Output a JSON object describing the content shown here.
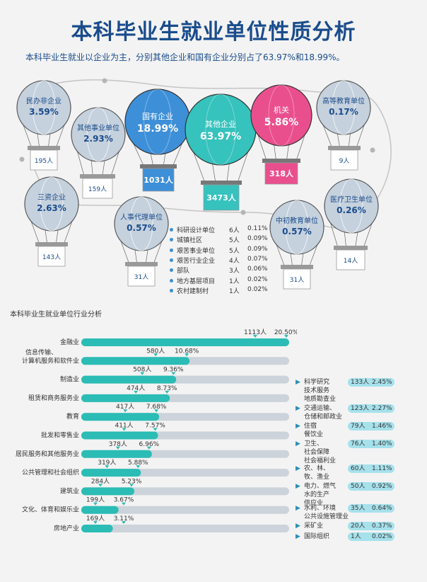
{
  "title": "本科毕业生就业单位性质分析",
  "subtitle": "本科毕业生就业以企业为主，分别其他企业和国有企业分别占了63.97%和18.99%。",
  "chart_data": [
    {
      "type": "bubble",
      "title": "就业单位性质",
      "balloons": [
        {
          "name": "民办非企业",
          "pct": "3.59%",
          "count": "195人",
          "color": "#c5d1dd"
        },
        {
          "name": "其他事业单位",
          "pct": "2.93%",
          "count": "159人",
          "color": "#c5d1dd"
        },
        {
          "name": "国有企业",
          "pct": "18.99%",
          "count": "1031人",
          "color": "#3d8fd8"
        },
        {
          "name": "其他企业",
          "pct": "63.97%",
          "count": "3473人",
          "color": "#36c2bd"
        },
        {
          "name": "机关",
          "pct": "5.86%",
          "count": "318人",
          "color": "#ea4f8d"
        },
        {
          "name": "高等教育单位",
          "pct": "0.17%",
          "count": "9人",
          "color": "#c5d1dd"
        },
        {
          "name": "三资企业",
          "pct": "2.63%",
          "count": "143人",
          "color": "#c5d1dd"
        },
        {
          "name": "人事代理单位",
          "pct": "0.57%",
          "count": "31人",
          "color": "#c5d1dd"
        },
        {
          "name": "中初教育单位",
          "pct": "0.57%",
          "count": "31人",
          "color": "#c5d1dd"
        },
        {
          "name": "医疗卫生单位",
          "pct": "0.26%",
          "count": "14人",
          "color": "#c5d1dd"
        }
      ],
      "others": [
        {
          "name": "科研设计单位",
          "count": "6人",
          "pct": "0.11%"
        },
        {
          "name": "城镇社区",
          "count": "5人",
          "pct": "0.09%"
        },
        {
          "name": "艰苦事业单位",
          "count": "5人",
          "pct": "0.09%"
        },
        {
          "name": "艰苦行业企业",
          "count": "4人",
          "pct": "0.07%"
        },
        {
          "name": "部队",
          "count": "3人",
          "pct": "0.06%"
        },
        {
          "name": "地方基层项目",
          "count": "1人",
          "pct": "0.02%"
        },
        {
          "name": "农村建制村",
          "count": "1人",
          "pct": "0.02%"
        }
      ]
    },
    {
      "type": "bar",
      "title": "本科毕业生就业单位行业分析",
      "max_pct": 20.5,
      "bars": [
        {
          "label": [
            "金融业"
          ],
          "count": "1113人",
          "pct_label": "20.50%",
          "pct": 20.5
        },
        {
          "label": [
            "信息传输、",
            "计算机服务和软件业"
          ],
          "count": "580人",
          "pct_label": "10.68%",
          "pct": 10.68
        },
        {
          "label": [
            "制造业"
          ],
          "count": "508人",
          "pct_label": "9.36%",
          "pct": 9.36
        },
        {
          "label": [
            "租赁和商务服务业"
          ],
          "count": "474人",
          "pct_label": "8.73%",
          "pct": 8.73
        },
        {
          "label": [
            "教育"
          ],
          "count": "417人",
          "pct_label": "7.68%",
          "pct": 7.68
        },
        {
          "label": [
            "批发和零售业"
          ],
          "count": "411人",
          "pct_label": "7.57%",
          "pct": 7.57
        },
        {
          "label": [
            "居民服务和其他服务业"
          ],
          "count": "378人",
          "pct_label": "6.96%",
          "pct": 6.96
        },
        {
          "label": [
            "公共管理和社会组织"
          ],
          "count": "319人",
          "pct_label": "5.88%",
          "pct": 5.88
        },
        {
          "label": [
            "建筑业"
          ],
          "count": "284人",
          "pct_label": "5.23%",
          "pct": 5.23
        },
        {
          "label": [
            "文化、体育和娱乐业"
          ],
          "count": "199人",
          "pct_label": "3.67%",
          "pct": 3.67
        },
        {
          "label": [
            "房地产业"
          ],
          "count": "169人",
          "pct_label": "3.11%",
          "pct": 3.11
        }
      ],
      "minor": [
        {
          "label": [
            "科学研究",
            "技术服务",
            "地质勘查业"
          ],
          "count": "133人",
          "pct": "2.45%"
        },
        {
          "label": [
            "交通运输、",
            "仓储和邮政业"
          ],
          "count": "123人",
          "pct": "2.27%"
        },
        {
          "label": [
            "住宿",
            "餐饮业"
          ],
          "count": "79人",
          "pct": "1.46%"
        },
        {
          "label": [
            "卫生、",
            "社会保障",
            "社会福利业"
          ],
          "count": "76人",
          "pct": "1.40%"
        },
        {
          "label": [
            "农、林、",
            "牧、渔业"
          ],
          "count": "60人",
          "pct": "1.11%"
        },
        {
          "label": [
            "电力、燃气",
            "水的生产",
            "供应业"
          ],
          "count": "50人",
          "pct": "0.92%"
        },
        {
          "label": [
            "水利、环境",
            "公共设施管理业"
          ],
          "count": "35人",
          "pct": "0.64%"
        },
        {
          "label": [
            "采矿业"
          ],
          "count": "20人",
          "pct": "0.37%"
        },
        {
          "label": [
            "国际组织"
          ],
          "count": "1人",
          "pct": "0.02%"
        }
      ]
    }
  ]
}
